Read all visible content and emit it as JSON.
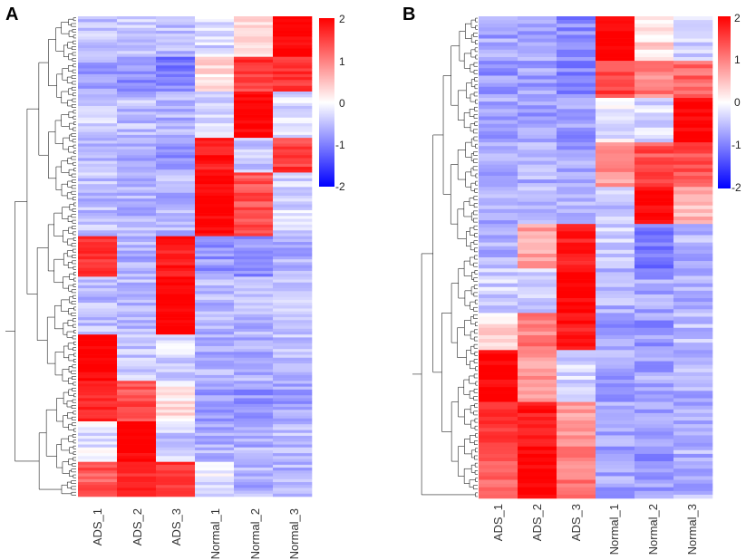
{
  "figure": {
    "panels": [
      {
        "label": "A",
        "columns": [
          "ADS_1",
          "ADS_2",
          "ADS_3",
          "Normal_1",
          "Normal_2",
          "Normal_3"
        ],
        "legend_ticks": [
          "2",
          "1",
          "0",
          "-1",
          "-2"
        ]
      },
      {
        "label": "B",
        "columns": [
          "ADS_1",
          "ADS_2",
          "ADS_3",
          "Normal_1",
          "Normal_2",
          "Normal_3"
        ],
        "legend_ticks": [
          "2",
          "1",
          "0",
          "-1",
          "-2"
        ]
      }
    ]
  },
  "chart_data": [
    {
      "type": "heatmap",
      "panel": "A",
      "columns": [
        "ADS_1",
        "ADS_2",
        "ADS_3",
        "Normal_1",
        "Normal_2",
        "Normal_3"
      ],
      "color_scale": {
        "min": -2,
        "max": 2,
        "low": "#0000ff",
        "mid": "#ffffff",
        "high": "#ff0000"
      },
      "dendrogram": "rows",
      "row_blocks": [
        {
          "rows": 14,
          "values": [
            -0.5,
            -0.4,
            -0.5,
            -0.3,
            0.3,
            2.0
          ]
        },
        {
          "rows": 12,
          "values": [
            -0.7,
            -0.9,
            -1.0,
            0.3,
            1.5,
            1.5
          ]
        },
        {
          "rows": 16,
          "values": [
            -0.4,
            -0.5,
            -0.6,
            -0.4,
            2.0,
            -0.3
          ]
        },
        {
          "rows": 12,
          "values": [
            -0.6,
            -0.7,
            -0.8,
            1.8,
            -0.4,
            1.5
          ]
        },
        {
          "rows": 22,
          "values": [
            -0.5,
            -0.6,
            -0.6,
            2.0,
            1.4,
            -0.3
          ]
        },
        {
          "rows": 14,
          "values": [
            1.6,
            -0.6,
            1.8,
            -0.8,
            -0.9,
            -0.6
          ]
        },
        {
          "rows": 20,
          "values": [
            -0.5,
            -0.5,
            2.0,
            -0.6,
            -0.6,
            -0.5
          ]
        },
        {
          "rows": 16,
          "values": [
            2.0,
            -0.4,
            -0.3,
            -0.6,
            -0.6,
            -0.5
          ]
        },
        {
          "rows": 14,
          "values": [
            1.7,
            1.4,
            0.2,
            -0.7,
            -0.8,
            -0.7
          ]
        },
        {
          "rows": 14,
          "values": [
            -0.2,
            2.0,
            -0.4,
            -0.6,
            -0.6,
            -0.5
          ]
        },
        {
          "rows": 12,
          "values": [
            1.3,
            1.7,
            1.6,
            -0.2,
            -0.6,
            -0.6
          ]
        }
      ]
    },
    {
      "type": "heatmap",
      "panel": "B",
      "columns": [
        "ADS_1",
        "ADS_2",
        "ADS_3",
        "Normal_1",
        "Normal_2",
        "Normal_3"
      ],
      "color_scale": {
        "min": -2,
        "max": 2,
        "low": "#0000ff",
        "mid": "#ffffff",
        "high": "#ff0000"
      },
      "dendrogram": "rows",
      "row_blocks": [
        {
          "rows": 12,
          "values": [
            -0.7,
            -0.7,
            -0.9,
            2.0,
            0.3,
            -0.4
          ]
        },
        {
          "rows": 10,
          "values": [
            -0.8,
            -0.7,
            -0.9,
            1.5,
            1.0,
            1.2
          ]
        },
        {
          "rows": 12,
          "values": [
            -0.7,
            -0.8,
            -0.8,
            -0.2,
            -0.3,
            2.0
          ]
        },
        {
          "rows": 12,
          "values": [
            -0.6,
            -0.6,
            -0.7,
            0.8,
            1.4,
            1.4
          ]
        },
        {
          "rows": 10,
          "values": [
            -0.6,
            -0.6,
            -0.6,
            -0.4,
            2.0,
            0.5
          ]
        },
        {
          "rows": 12,
          "values": [
            -0.6,
            0.7,
            1.8,
            -0.4,
            -1.0,
            -0.6
          ]
        },
        {
          "rows": 12,
          "values": [
            -0.4,
            -0.4,
            2.0,
            -0.6,
            -0.7,
            -0.6
          ]
        },
        {
          "rows": 10,
          "values": [
            0.3,
            1.0,
            1.8,
            -0.8,
            -0.8,
            -0.5
          ]
        },
        {
          "rows": 14,
          "values": [
            2.0,
            0.8,
            -0.3,
            -0.7,
            -0.7,
            -0.6
          ]
        },
        {
          "rows": 12,
          "values": [
            1.6,
            1.8,
            0.8,
            -0.7,
            -0.8,
            -0.7
          ]
        },
        {
          "rows": 14,
          "values": [
            1.2,
            2.0,
            1.0,
            -0.7,
            -0.8,
            -0.6
          ]
        }
      ]
    }
  ]
}
